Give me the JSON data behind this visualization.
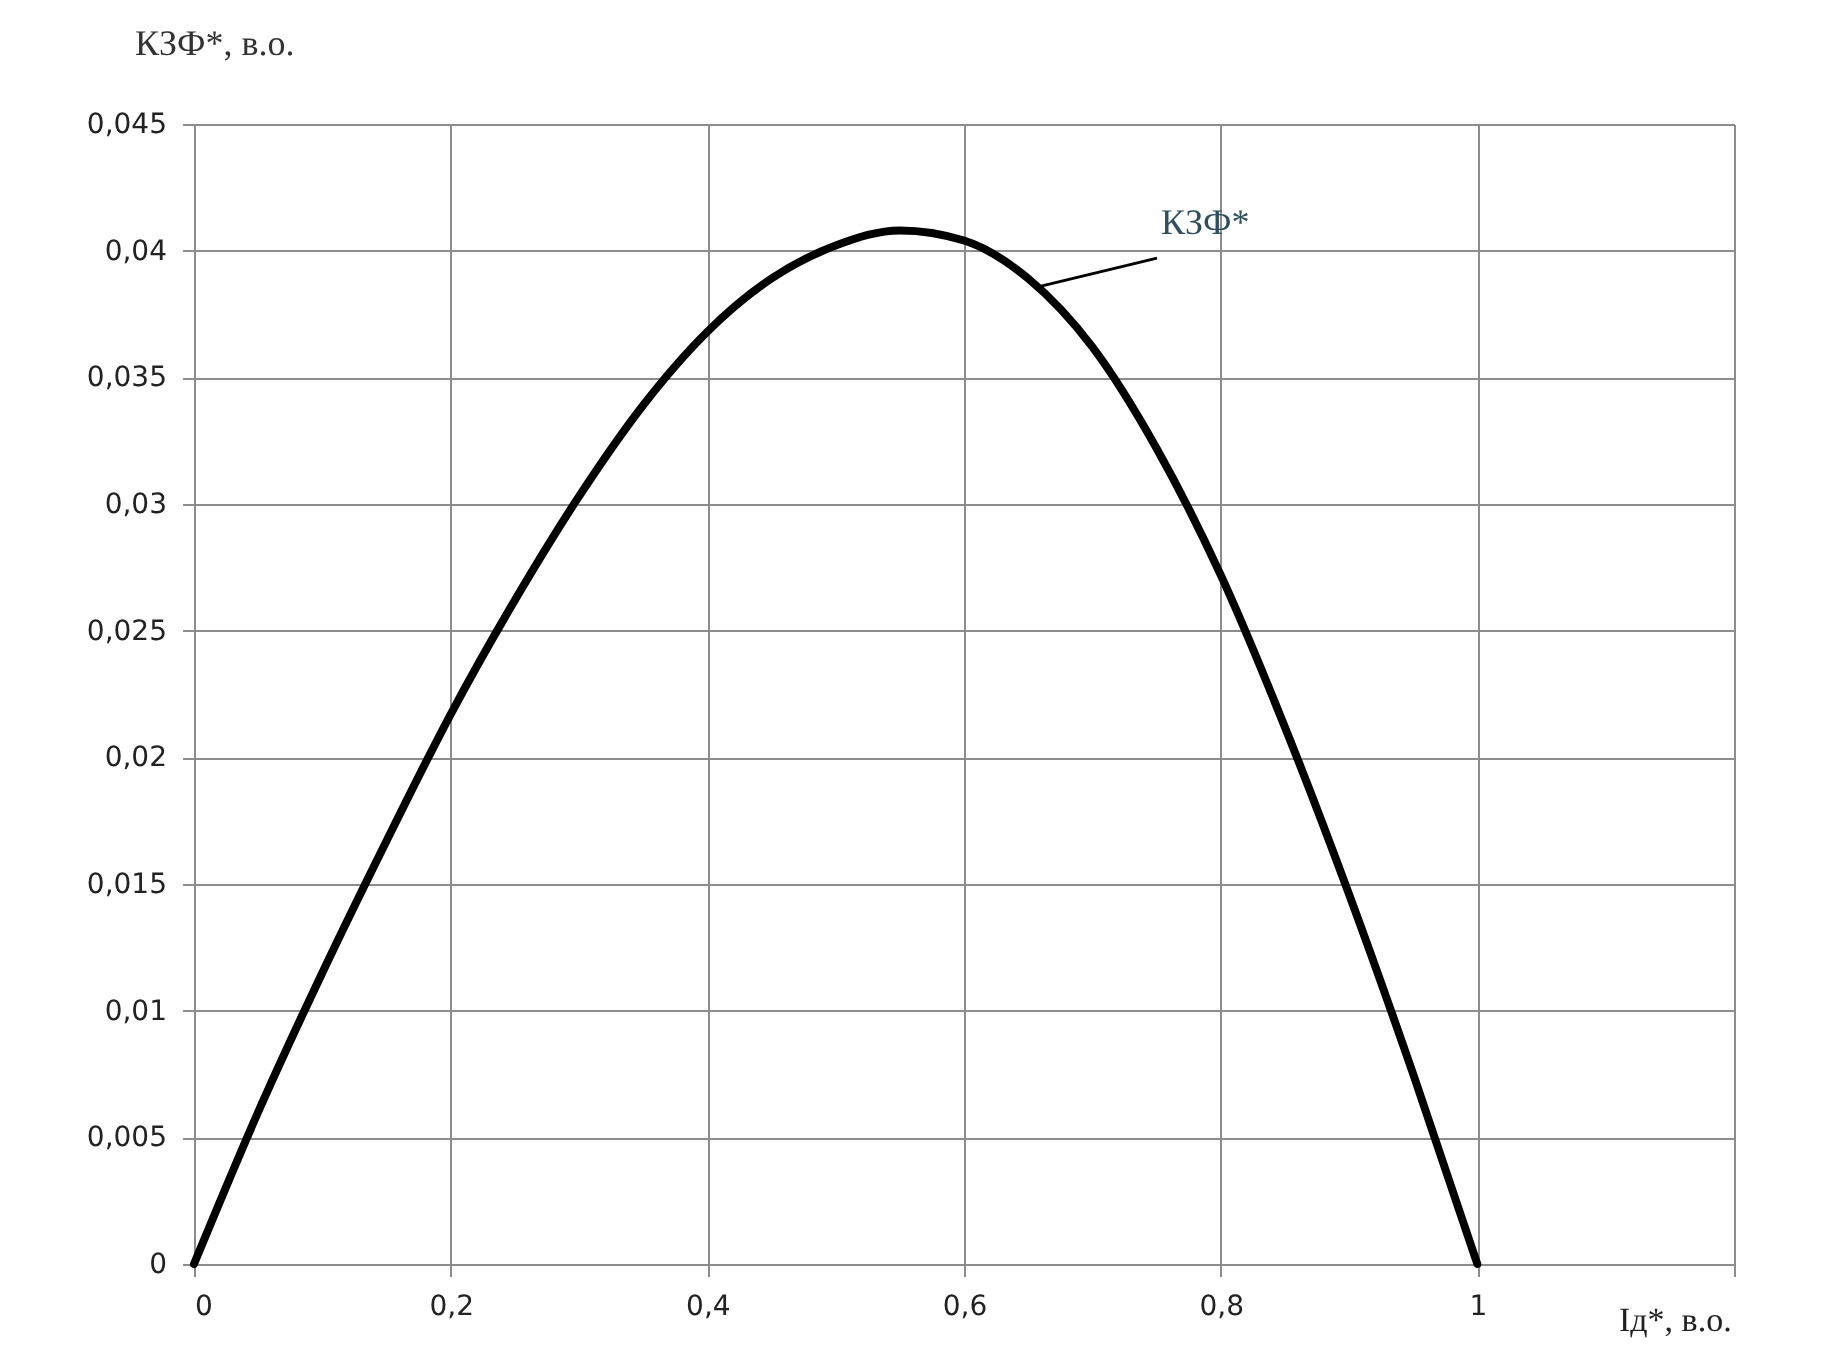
{
  "chart_data": {
    "type": "line",
    "xlabel": "Iд*, в.о.",
    "ylabel": "КЗФ*, в.о.",
    "x": [
      0,
      0.05,
      0.1,
      0.15,
      0.2,
      0.25,
      0.3,
      0.35,
      0.4,
      0.45,
      0.5,
      0.55,
      0.6,
      0.65,
      0.7,
      0.75,
      0.8,
      0.85,
      0.9,
      0.95,
      1
    ],
    "series": [
      {
        "color": "#000000",
        "values": [
          0,
          0.006,
          0.0115,
          0.0167,
          0.0217,
          0.0262,
          0.0303,
          0.0339,
          0.0368,
          0.0389,
          0.0402,
          0.0408,
          0.0404,
          0.0389,
          0.0362,
          0.0322,
          0.0272,
          0.0212,
          0.0146,
          0.0075,
          0
        ]
      }
    ],
    "xlim": [
      0,
      1.2
    ],
    "xticks": [
      0,
      {
        "value": 0.2,
        "label": "0,2"
      },
      {
        "value": 0.4,
        "label": "0,4"
      },
      {
        "value": 0.6,
        "label": "0,6"
      },
      {
        "value": 0.8,
        "label": "0,8"
      },
      1,
      {
        "value": 1.2,
        "label": null
      }
    ],
    "ylim": [
      0,
      0.045
    ],
    "yticks": [
      0,
      {
        "value": 0.005,
        "label": "0,005"
      },
      {
        "value": 0.01,
        "label": "0,01"
      },
      {
        "value": 0.015,
        "label": "0,015"
      },
      {
        "value": 0.02,
        "label": "0,02"
      },
      {
        "value": 0.025,
        "label": "0,025"
      },
      {
        "value": 0.03,
        "label": "0,03"
      },
      {
        "value": 0.035,
        "label": "0,035"
      },
      {
        "value": 0.04,
        "label": "0,04"
      },
      {
        "value": 0.045,
        "label": "0,045"
      }
    ],
    "grid": true,
    "marker": "none",
    "line_style": "solid",
    "annotations": [
      {
        "text": "КЗФ*",
        "x": 0.66,
        "y": 0.0386
      }
    ]
  }
}
